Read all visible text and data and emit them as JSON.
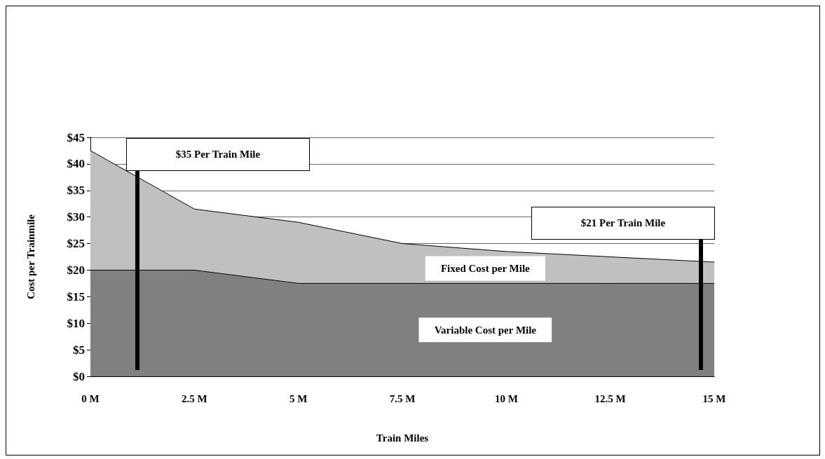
{
  "chart_data": {
    "type": "area",
    "stacked": true,
    "xlabel": "Train Miles",
    "ylabel": "Cost per Trainmile",
    "categories": [
      "0 M",
      "2.5 M",
      "5 M",
      "7.5 M",
      "10 M",
      "12.5 M",
      "15 M"
    ],
    "series": [
      {
        "name": "Variable Cost per Mile",
        "color": "#808080",
        "values": [
          20,
          20,
          17.5,
          17.5,
          17.5,
          17.5,
          17.5
        ]
      },
      {
        "name": "Fixed Cost per Mile",
        "color": "#c0c0c0",
        "values": [
          22.5,
          11.5,
          11.5,
          7.5,
          6,
          5,
          4
        ]
      }
    ],
    "ylim": [
      0,
      45
    ],
    "yticks": [
      {
        "value": 0,
        "label": "$0"
      },
      {
        "value": 5,
        "label": "$5"
      },
      {
        "value": 10,
        "label": "$10"
      },
      {
        "value": 15,
        "label": "$15"
      },
      {
        "value": 20,
        "label": "$20"
      },
      {
        "value": 25,
        "label": "$25"
      },
      {
        "value": 30,
        "label": "$30"
      },
      {
        "value": 35,
        "label": "$35"
      },
      {
        "value": 40,
        "label": "$40"
      },
      {
        "value": 45,
        "label": "$45"
      }
    ],
    "grid": "y",
    "legend": false,
    "annotations": [
      "$35 Per Train Mile",
      "$21 Per Train Mile"
    ]
  }
}
